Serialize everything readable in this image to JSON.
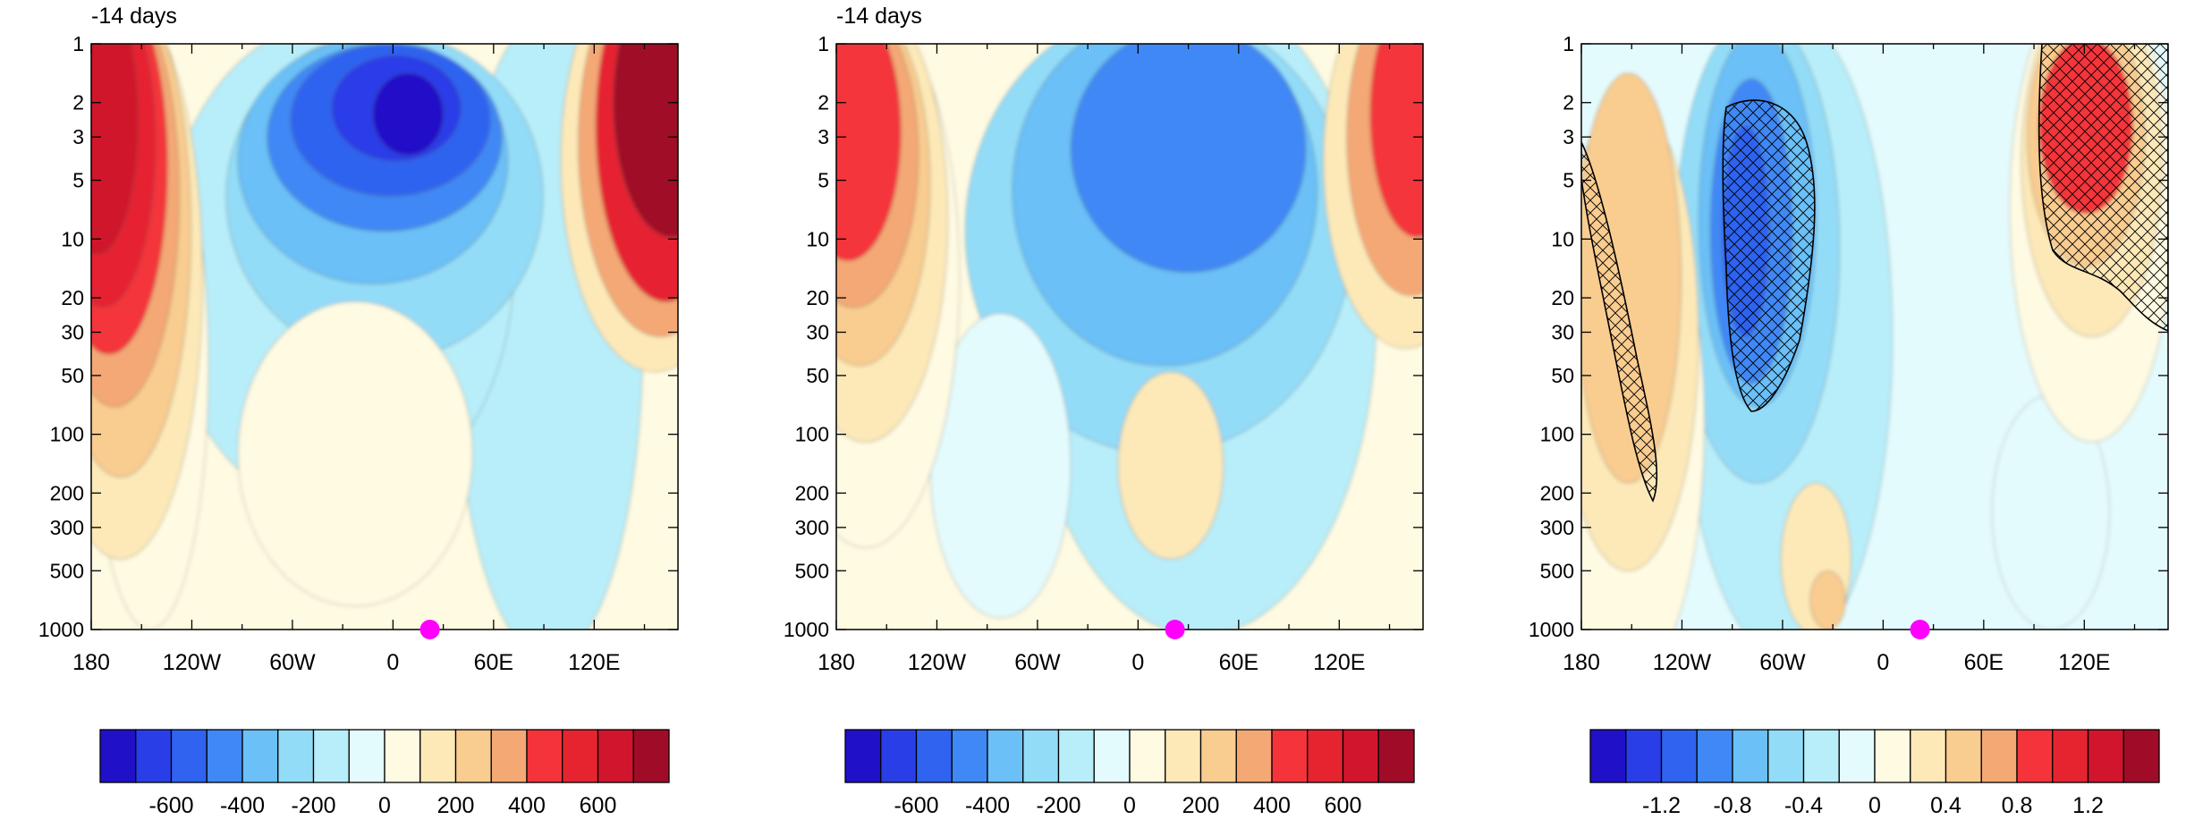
{
  "chart_data": [
    {
      "type": "heatmap",
      "title": "-14 days",
      "x_ticks": [
        "180",
        "120W",
        "60W",
        "0",
        "60E",
        "120E"
      ],
      "y_ticks": [
        "1",
        "2",
        "3",
        "5",
        "10",
        "20",
        "30",
        "50",
        "100",
        "200",
        "300",
        "500",
        "1000"
      ],
      "y_scale": "log",
      "y_reversed": true,
      "colorbar_labels": [
        "-600",
        "-400",
        "-200",
        "0",
        "200",
        "400",
        "600"
      ],
      "marker": {
        "x": "22E",
        "y": "1000",
        "color": "#ff00ff"
      },
      "hatching": false
    },
    {
      "type": "heatmap",
      "title": "-14 days",
      "x_ticks": [
        "180",
        "120W",
        "60W",
        "0",
        "60E",
        "120E"
      ],
      "y_ticks": [
        "1",
        "2",
        "3",
        "5",
        "10",
        "20",
        "30",
        "50",
        "100",
        "200",
        "300",
        "500",
        "1000"
      ],
      "y_scale": "log",
      "y_reversed": true,
      "colorbar_labels": [
        "-600",
        "-400",
        "-200",
        "0",
        "200",
        "400",
        "600"
      ],
      "marker": {
        "x": "22E",
        "y": "1000",
        "color": "#ff00ff"
      },
      "hatching": false
    },
    {
      "type": "heatmap",
      "title": "",
      "x_ticks": [
        "180",
        "120W",
        "60W",
        "0",
        "60E",
        "120E"
      ],
      "y_ticks": [
        "1",
        "2",
        "3",
        "5",
        "10",
        "20",
        "30",
        "50",
        "100",
        "200",
        "300",
        "500",
        "1000"
      ],
      "y_scale": "log",
      "y_reversed": true,
      "colorbar_labels": [
        "-1.2",
        "-0.8",
        "-0.4",
        "0",
        "0.4",
        "0.8",
        "1.2"
      ],
      "marker": {
        "x": "22E",
        "y": "1000",
        "color": "#ff00ff"
      },
      "hatching": true
    }
  ],
  "colors": {
    "palette": [
      "#2010c8",
      "#2a3ee8",
      "#2f63f0",
      "#3f88f5",
      "#6bc0f7",
      "#93dcf8",
      "#b8eef9",
      "#e4fbfd",
      "#fffae2",
      "#fde9b8",
      "#f9cc90",
      "#f4a874",
      "#f4343a",
      "#e62430",
      "#d0152c",
      "#a00c28"
    ],
    "marker": "#ff00ff"
  }
}
